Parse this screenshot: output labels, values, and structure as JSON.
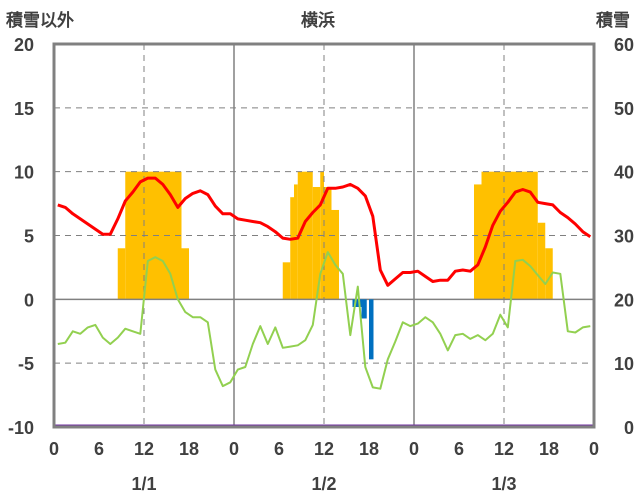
{
  "chart_data": {
    "type": "line",
    "title": "横浜",
    "ylabel_left": "積雪以外",
    "ylabel_right": "積雪",
    "ylim_left": [
      -10,
      20
    ],
    "ylim_right": [
      0,
      60
    ],
    "yticks_left": [
      "20",
      "15",
      "10",
      "5",
      "0",
      "-5",
      "-10"
    ],
    "yticks_right": [
      "60",
      "50",
      "40",
      "30",
      "20",
      "10",
      "0"
    ],
    "x_hour_ticks": [
      "0",
      "6",
      "12",
      "18",
      "0",
      "6",
      "12",
      "18",
      "0",
      "6",
      "12",
      "18",
      "0"
    ],
    "day_labels": [
      "1/1",
      "1/2",
      "1/3"
    ],
    "colors": {
      "temperature": "#ff0000",
      "dewpoint": "#92d050",
      "sunshine": "#ffc000",
      "precip": "#0070c0",
      "snow": "#7030a0",
      "axis": "#808080",
      "text": "#404040"
    },
    "series_temperature": [
      7.4,
      7.2,
      6.7,
      6.3,
      5.9,
      5.5,
      5.1,
      5.1,
      6.3,
      7.7,
      8.4,
      9.2,
      9.5,
      9.5,
      9.0,
      8.2,
      7.2,
      7.9,
      8.3,
      8.5,
      8.2,
      7.3,
      6.7,
      6.7,
      6.3,
      6.2,
      6.1,
      6.0,
      5.7,
      5.3,
      4.8,
      4.7,
      4.8,
      6.1,
      6.8,
      7.4,
      8.7,
      8.7,
      8.8,
      9.0,
      8.7,
      8.1,
      6.5,
      2.3,
      1.1,
      1.6,
      2.1,
      2.1,
      2.2,
      1.8,
      1.4,
      1.5,
      1.5,
      2.2,
      2.3,
      2.2,
      2.7,
      4.1,
      5.8,
      6.9,
      7.6,
      8.4,
      8.6,
      8.4,
      7.6,
      7.5,
      7.4,
      6.8,
      6.4,
      5.9,
      5.3,
      4.9
    ],
    "series_dewpoint": [
      -3.5,
      -3.4,
      -2.5,
      -2.7,
      -2.2,
      -2.0,
      -3.0,
      -3.5,
      -3.0,
      -2.3,
      -2.5,
      -2.7,
      3.0,
      3.3,
      3.0,
      2.0,
      0.0,
      -1.0,
      -1.4,
      -1.4,
      -1.8,
      -5.5,
      -6.8,
      -6.5,
      -5.5,
      -5.3,
      -3.5,
      -2.1,
      -3.5,
      -2.2,
      -3.8,
      -3.7,
      -3.6,
      -3.2,
      -2.0,
      2.0,
      3.7,
      2.7,
      2.0,
      -2.8,
      1.0,
      -5.3,
      -6.9,
      -7.0,
      -4.7,
      -3.3,
      -1.8,
      -2.1,
      -1.9,
      -1.4,
      -1.8,
      -2.7,
      -4.0,
      -2.8,
      -2.7,
      -3.1,
      -2.8,
      -3.2,
      -2.7,
      -1.2,
      -2.2,
      3.0,
      3.1,
      2.6,
      1.9,
      1.2,
      2.1,
      2.0,
      -2.5,
      -2.6,
      -2.2,
      -2.1
    ],
    "sunshine_segments": [
      {
        "start": 8.5,
        "end": 9.5,
        "value": 4.0
      },
      {
        "start": 9.5,
        "end": 17.0,
        "value": 10.0
      },
      {
        "start": 17.0,
        "end": 18.0,
        "value": 4.0
      },
      {
        "start": 30.5,
        "end": 31.5,
        "value": 2.9
      },
      {
        "start": 31.5,
        "end": 32.0,
        "value": 8.0
      },
      {
        "start": 32.0,
        "end": 32.5,
        "value": 9.0
      },
      {
        "start": 32.5,
        "end": 34.5,
        "value": 10.0
      },
      {
        "start": 34.5,
        "end": 35.5,
        "value": 8.8
      },
      {
        "start": 35.5,
        "end": 36.0,
        "value": 10.0
      },
      {
        "start": 36.0,
        "end": 37.0,
        "value": 8.8
      },
      {
        "start": 37.0,
        "end": 38.0,
        "value": 7.0
      },
      {
        "start": 56.0,
        "end": 57.0,
        "value": 9.0
      },
      {
        "start": 57.0,
        "end": 64.5,
        "value": 10.0
      },
      {
        "start": 64.5,
        "end": 65.5,
        "value": 6.0
      },
      {
        "start": 65.5,
        "end": 66.5,
        "value": 4.0
      }
    ],
    "precipitation_segments": [
      {
        "start": 39.8,
        "end": 41.0,
        "value": -0.6
      },
      {
        "start": 41.0,
        "end": 41.7,
        "value": -1.5
      },
      {
        "start": 42.0,
        "end": 42.6,
        "value": -4.7
      }
    ],
    "snow_depth_right_axis": 0
  }
}
